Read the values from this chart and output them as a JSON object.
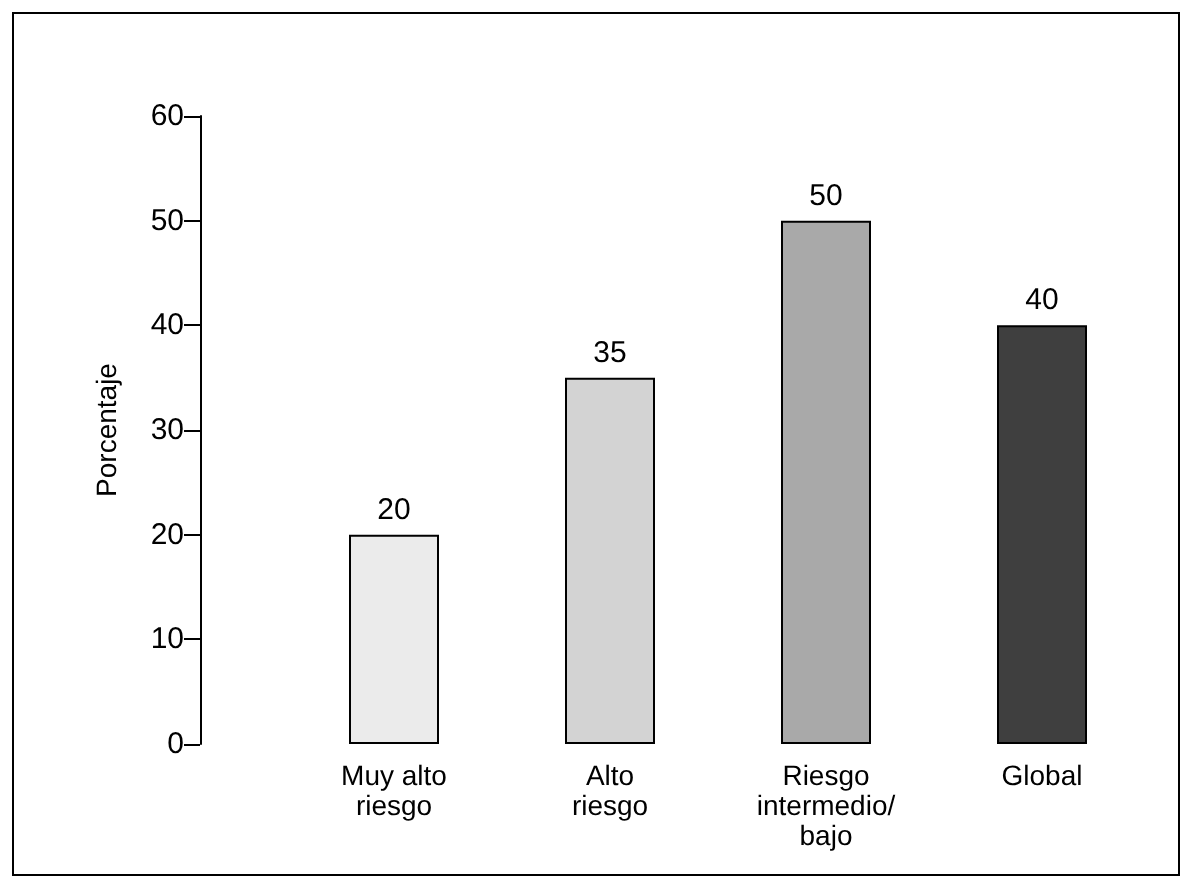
{
  "chart_data": {
    "type": "bar",
    "ylabel": "Porcentaje",
    "categories": [
      "Muy alto\nriesgo",
      "Alto\nriesgo",
      "Riesgo\nintermedio/\nbajo",
      "Global"
    ],
    "values": [
      20,
      35,
      50,
      40
    ],
    "colors": [
      "#ebebeb",
      "#d3d3d3",
      "#a9a9a9",
      "#3f3f3f"
    ],
    "ylim": [
      0,
      60
    ],
    "yticks": [
      0,
      10,
      20,
      30,
      40,
      50,
      60
    ],
    "data_labels": true,
    "grid": false
  }
}
